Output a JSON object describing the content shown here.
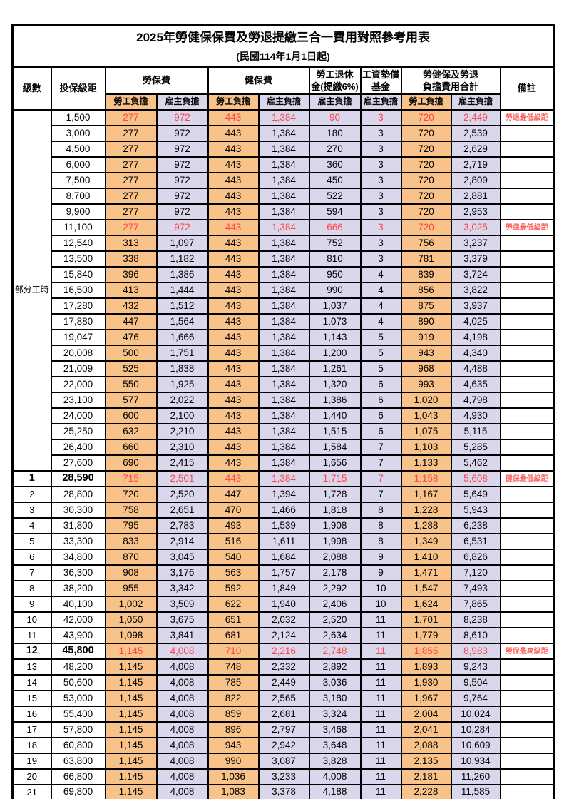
{
  "title": "2025年勞健保保費及勞退提繳三合一費用對照參考用表",
  "subtitle": "(民國114年1月1日起)",
  "colors": {
    "employee_col": "#F9C289",
    "employer_col": "#DAD6EC",
    "highlight_text": "#FF4545",
    "note_text": "#FF6060",
    "grid": "#000000"
  },
  "header": {
    "level": "級數",
    "bracket": "投保級距",
    "labor_ins": "勞保費",
    "health_ins": "健保費",
    "pension_l1": "勞工退休",
    "pension_l2": "金(提繳6%)",
    "wage_fund_l1": "工資墊償",
    "wage_fund_l2": "基金",
    "total_l1": "勞健保及勞退",
    "total_l2": "負擔費用合計",
    "remark": "備註",
    "employee": "勞工負擔",
    "employer": "雇主負擔"
  },
  "part_time_label": "部分工時",
  "rows": [
    {
      "level": null,
      "bracket": "1,500",
      "values": [
        "277",
        "972",
        "443",
        "1,384",
        "90",
        "3",
        "720",
        "2,449"
      ],
      "note": "勞退最低級距",
      "red": true
    },
    {
      "level": null,
      "bracket": "3,000",
      "values": [
        "277",
        "972",
        "443",
        "1,384",
        "180",
        "3",
        "720",
        "2,539"
      ],
      "note": ""
    },
    {
      "level": null,
      "bracket": "4,500",
      "values": [
        "277",
        "972",
        "443",
        "1,384",
        "270",
        "3",
        "720",
        "2,629"
      ],
      "note": ""
    },
    {
      "level": null,
      "bracket": "6,000",
      "values": [
        "277",
        "972",
        "443",
        "1,384",
        "360",
        "3",
        "720",
        "2,719"
      ],
      "note": ""
    },
    {
      "level": null,
      "bracket": "7,500",
      "values": [
        "277",
        "972",
        "443",
        "1,384",
        "450",
        "3",
        "720",
        "2,809"
      ],
      "note": ""
    },
    {
      "level": null,
      "bracket": "8,700",
      "values": [
        "277",
        "972",
        "443",
        "1,384",
        "522",
        "3",
        "720",
        "2,881"
      ],
      "note": ""
    },
    {
      "level": null,
      "bracket": "9,900",
      "values": [
        "277",
        "972",
        "443",
        "1,384",
        "594",
        "3",
        "720",
        "2,953"
      ],
      "note": ""
    },
    {
      "level": null,
      "bracket": "11,100",
      "values": [
        "277",
        "972",
        "443",
        "1,384",
        "666",
        "3",
        "720",
        "3,025"
      ],
      "note": "勞保最低級距",
      "red": true
    },
    {
      "level": null,
      "bracket": "12,540",
      "values": [
        "313",
        "1,097",
        "443",
        "1,384",
        "752",
        "3",
        "756",
        "3,237"
      ],
      "note": ""
    },
    {
      "level": null,
      "bracket": "13,500",
      "values": [
        "338",
        "1,182",
        "443",
        "1,384",
        "810",
        "3",
        "781",
        "3,379"
      ],
      "note": ""
    },
    {
      "level": null,
      "bracket": "15,840",
      "values": [
        "396",
        "1,386",
        "443",
        "1,384",
        "950",
        "4",
        "839",
        "3,724"
      ],
      "note": ""
    },
    {
      "level": null,
      "bracket": "16,500",
      "values": [
        "413",
        "1,444",
        "443",
        "1,384",
        "990",
        "4",
        "856",
        "3,822"
      ],
      "note": ""
    },
    {
      "level": null,
      "bracket": "17,280",
      "values": [
        "432",
        "1,512",
        "443",
        "1,384",
        "1,037",
        "4",
        "875",
        "3,937"
      ],
      "note": ""
    },
    {
      "level": null,
      "bracket": "17,880",
      "values": [
        "447",
        "1,564",
        "443",
        "1,384",
        "1,073",
        "4",
        "890",
        "4,025"
      ],
      "note": ""
    },
    {
      "level": null,
      "bracket": "19,047",
      "values": [
        "476",
        "1,666",
        "443",
        "1,384",
        "1,143",
        "5",
        "919",
        "4,198"
      ],
      "note": ""
    },
    {
      "level": null,
      "bracket": "20,008",
      "values": [
        "500",
        "1,751",
        "443",
        "1,384",
        "1,200",
        "5",
        "943",
        "4,340"
      ],
      "note": ""
    },
    {
      "level": null,
      "bracket": "21,009",
      "values": [
        "525",
        "1,838",
        "443",
        "1,384",
        "1,261",
        "5",
        "968",
        "4,488"
      ],
      "note": ""
    },
    {
      "level": null,
      "bracket": "22,000",
      "values": [
        "550",
        "1,925",
        "443",
        "1,384",
        "1,320",
        "6",
        "993",
        "4,635"
      ],
      "note": ""
    },
    {
      "level": null,
      "bracket": "23,100",
      "values": [
        "577",
        "2,022",
        "443",
        "1,384",
        "1,386",
        "6",
        "1,020",
        "4,798"
      ],
      "note": ""
    },
    {
      "level": null,
      "bracket": "24,000",
      "values": [
        "600",
        "2,100",
        "443",
        "1,384",
        "1,440",
        "6",
        "1,043",
        "4,930"
      ],
      "note": ""
    },
    {
      "level": null,
      "bracket": "25,250",
      "values": [
        "632",
        "2,210",
        "443",
        "1,384",
        "1,515",
        "6",
        "1,075",
        "5,115"
      ],
      "note": ""
    },
    {
      "level": null,
      "bracket": "26,400",
      "values": [
        "660",
        "2,310",
        "443",
        "1,384",
        "1,584",
        "7",
        "1,103",
        "5,285"
      ],
      "note": ""
    },
    {
      "level": null,
      "bracket": "27,600",
      "values": [
        "690",
        "2,415",
        "443",
        "1,384",
        "1,656",
        "7",
        "1,133",
        "5,462"
      ],
      "note": ""
    },
    {
      "level": "1",
      "bracket": "28,590",
      "values": [
        "715",
        "2,501",
        "443",
        "1,384",
        "1,715",
        "7",
        "1,158",
        "5,608"
      ],
      "note": "健保最低級距",
      "red": true,
      "bold": true
    },
    {
      "level": "2",
      "bracket": "28,800",
      "values": [
        "720",
        "2,520",
        "447",
        "1,394",
        "1,728",
        "7",
        "1,167",
        "5,649"
      ],
      "note": ""
    },
    {
      "level": "3",
      "bracket": "30,300",
      "values": [
        "758",
        "2,651",
        "470",
        "1,466",
        "1,818",
        "8",
        "1,228",
        "5,943"
      ],
      "note": ""
    },
    {
      "level": "4",
      "bracket": "31,800",
      "values": [
        "795",
        "2,783",
        "493",
        "1,539",
        "1,908",
        "8",
        "1,288",
        "6,238"
      ],
      "note": ""
    },
    {
      "level": "5",
      "bracket": "33,300",
      "values": [
        "833",
        "2,914",
        "516",
        "1,611",
        "1,998",
        "8",
        "1,349",
        "6,531"
      ],
      "note": ""
    },
    {
      "level": "6",
      "bracket": "34,800",
      "values": [
        "870",
        "3,045",
        "540",
        "1,684",
        "2,088",
        "9",
        "1,410",
        "6,826"
      ],
      "note": ""
    },
    {
      "level": "7",
      "bracket": "36,300",
      "values": [
        "908",
        "3,176",
        "563",
        "1,757",
        "2,178",
        "9",
        "1,471",
        "7,120"
      ],
      "note": ""
    },
    {
      "level": "8",
      "bracket": "38,200",
      "values": [
        "955",
        "3,342",
        "592",
        "1,849",
        "2,292",
        "10",
        "1,547",
        "7,493"
      ],
      "note": ""
    },
    {
      "level": "9",
      "bracket": "40,100",
      "values": [
        "1,002",
        "3,509",
        "622",
        "1,940",
        "2,406",
        "10",
        "1,624",
        "7,865"
      ],
      "note": ""
    },
    {
      "level": "10",
      "bracket": "42,000",
      "values": [
        "1,050",
        "3,675",
        "651",
        "2,032",
        "2,520",
        "11",
        "1,701",
        "8,238"
      ],
      "note": ""
    },
    {
      "level": "11",
      "bracket": "43,900",
      "values": [
        "1,098",
        "3,841",
        "681",
        "2,124",
        "2,634",
        "11",
        "1,779",
        "8,610"
      ],
      "note": ""
    },
    {
      "level": "12",
      "bracket": "45,800",
      "values": [
        "1,145",
        "4,008",
        "710",
        "2,216",
        "2,748",
        "11",
        "1,855",
        "8,983"
      ],
      "note": "勞保最高級距",
      "red": true,
      "bold": true
    },
    {
      "level": "13",
      "bracket": "48,200",
      "values": [
        "1,145",
        "4,008",
        "748",
        "2,332",
        "2,892",
        "11",
        "1,893",
        "9,243"
      ],
      "note": ""
    },
    {
      "level": "14",
      "bracket": "50,600",
      "values": [
        "1,145",
        "4,008",
        "785",
        "2,449",
        "3,036",
        "11",
        "1,930",
        "9,504"
      ],
      "note": ""
    },
    {
      "level": "15",
      "bracket": "53,000",
      "values": [
        "1,145",
        "4,008",
        "822",
        "2,565",
        "3,180",
        "11",
        "1,967",
        "9,764"
      ],
      "note": ""
    },
    {
      "level": "16",
      "bracket": "55,400",
      "values": [
        "1,145",
        "4,008",
        "859",
        "2,681",
        "3,324",
        "11",
        "2,004",
        "10,024"
      ],
      "note": ""
    },
    {
      "level": "17",
      "bracket": "57,800",
      "values": [
        "1,145",
        "4,008",
        "896",
        "2,797",
        "3,468",
        "11",
        "2,041",
        "10,284"
      ],
      "note": ""
    },
    {
      "level": "18",
      "bracket": "60,800",
      "values": [
        "1,145",
        "4,008",
        "943",
        "2,942",
        "3,648",
        "11",
        "2,088",
        "10,609"
      ],
      "note": ""
    },
    {
      "level": "19",
      "bracket": "63,800",
      "values": [
        "1,145",
        "4,008",
        "990",
        "3,087",
        "3,828",
        "11",
        "2,135",
        "10,934"
      ],
      "note": ""
    },
    {
      "level": "20",
      "bracket": "66,800",
      "values": [
        "1,145",
        "4,008",
        "1,036",
        "3,233",
        "4,008",
        "11",
        "2,181",
        "11,260"
      ],
      "note": ""
    },
    {
      "level": "21",
      "bracket": "69,800",
      "values": [
        "1,145",
        "4,008",
        "1,083",
        "3,378",
        "4,188",
        "11",
        "2,228",
        "11,585"
      ],
      "note": ""
    }
  ]
}
